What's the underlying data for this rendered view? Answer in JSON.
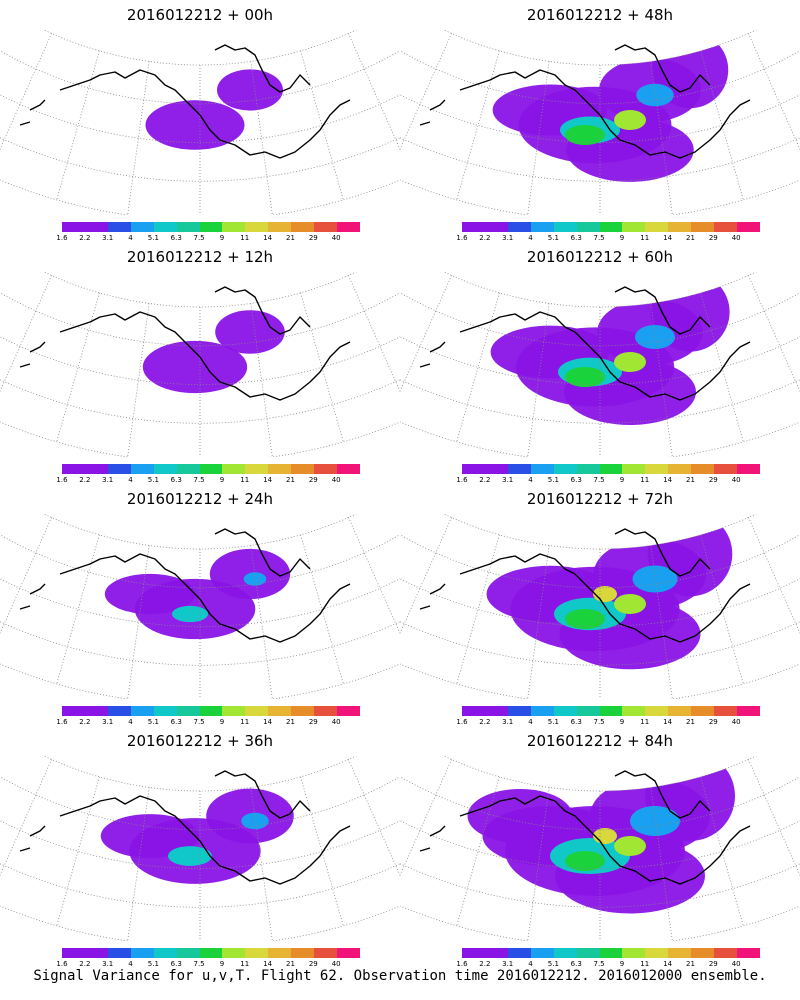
{
  "panels": [
    {
      "title": "2016012212 + 00h",
      "activity": 0.25
    },
    {
      "title": "2016012212 + 48h",
      "activity": 0.75
    },
    {
      "title": "2016012212 + 12h",
      "activity": 0.3
    },
    {
      "title": "2016012212 + 60h",
      "activity": 0.8
    },
    {
      "title": "2016012212 + 24h",
      "activity": 0.45
    },
    {
      "title": "2016012212 + 72h",
      "activity": 0.9
    },
    {
      "title": "2016012212 + 36h",
      "activity": 0.55
    },
    {
      "title": "2016012212 + 84h",
      "activity": 1.0
    }
  ],
  "colorbar": {
    "colors": [
      "#8a14e6",
      "#8a14e6",
      "#2a4fe6",
      "#1aa0f0",
      "#10c8c8",
      "#16c89a",
      "#1ad23c",
      "#a0e632",
      "#d8d83c",
      "#e6b432",
      "#e68c28",
      "#e6503c",
      "#f01478"
    ],
    "labels": [
      "1.6",
      "2.2",
      "3.1",
      "4",
      "5.1",
      "6.3",
      "7.5",
      "9",
      "11",
      "14",
      "21",
      "29",
      "40"
    ]
  },
  "caption": "Signal Variance for u,v,T. Flight 62. Observation time 2016012212. 2016012000 ensemble."
}
